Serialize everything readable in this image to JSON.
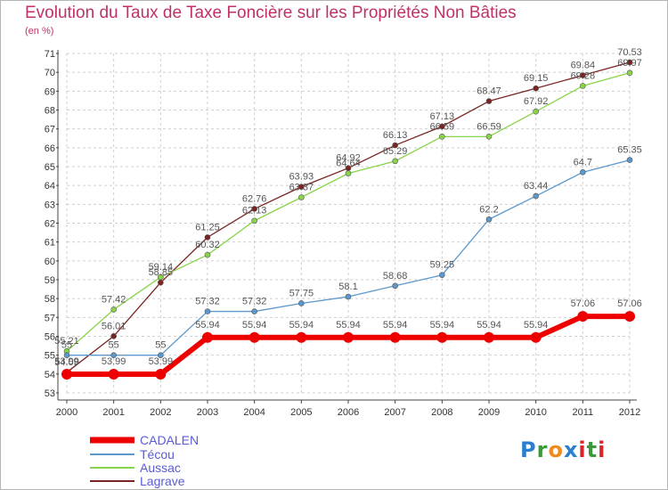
{
  "chart_data": {
    "type": "line",
    "title": "Evolution du Taux de Taxe Foncière sur les Propriétés Non Bâties",
    "ylabel": "(en %)",
    "xlabel": "",
    "x": [
      "2000",
      "2001",
      "2002",
      "2003",
      "2004",
      "2005",
      "2006",
      "2007",
      "2008",
      "2009",
      "2010",
      "2011",
      "2012"
    ],
    "ylim": [
      53,
      71
    ],
    "yticks": [
      53,
      54,
      55,
      56,
      57,
      58,
      59,
      60,
      61,
      62,
      63,
      64,
      65,
      66,
      67,
      68,
      69,
      70,
      71
    ],
    "grid": true,
    "legend": "bottom-left",
    "series": [
      {
        "name": "CADALEN",
        "color": "#ee0000",
        "values": [
          53.99,
          53.99,
          53.99,
          55.94,
          55.94,
          55.94,
          55.94,
          55.94,
          55.94,
          55.94,
          55.94,
          57.06,
          57.06
        ],
        "labels": [
          "53.99",
          "53.99",
          "53.99",
          "55.94",
          "55.94",
          "55.94",
          "55.94",
          "55.94",
          "55.94",
          "55.94",
          "55.94",
          "57.06",
          "57.06"
        ]
      },
      {
        "name": "Técou",
        "color": "#5c98cc",
        "values": [
          55,
          55,
          55,
          57.32,
          57.32,
          57.75,
          58.1,
          58.68,
          59.25,
          62.2,
          63.44,
          64.7,
          65.35
        ],
        "labels": [
          "55",
          "55",
          "55",
          "57.32",
          "57.32",
          "57.75",
          "58.1",
          "58.68",
          "59.25",
          "62.2",
          "63.44",
          "64.7",
          "65.35"
        ]
      },
      {
        "name": "Aussac",
        "color": "#88d44a",
        "values": [
          55.21,
          57.42,
          59.14,
          60.32,
          62.13,
          63.37,
          64.64,
          65.29,
          66.59,
          66.59,
          67.92,
          69.28,
          69.97
        ],
        "labels": [
          "55.21",
          "57.42",
          "59.14",
          "60.32",
          "62.13",
          "63.37",
          "64.64",
          "65.29",
          "66.59",
          "66.59",
          "67.92",
          "69.28",
          "69.97"
        ]
      },
      {
        "name": "Lagrave",
        "color": "#7a2323",
        "values": [
          54.09,
          56.01,
          58.85,
          61.25,
          62.76,
          63.93,
          64.92,
          66.13,
          67.13,
          68.47,
          69.15,
          69.84,
          70.53
        ],
        "labels": [
          "54.09",
          "56.01",
          "58.85",
          "61.25",
          "62.76",
          "63.93",
          "64.92",
          "66.13",
          "67.13",
          "68.47",
          "69.15",
          "69.84",
          "70.53"
        ]
      }
    ]
  },
  "logo": {
    "letters": [
      "P",
      "r",
      "o",
      "x",
      "i",
      "t",
      "i"
    ],
    "colors": [
      "#2c7fd0",
      "#3a9a3a",
      "#f08a1c",
      "#2c7fd0",
      "#d8242a",
      "#3a9a3a",
      "#d8242a"
    ]
  }
}
